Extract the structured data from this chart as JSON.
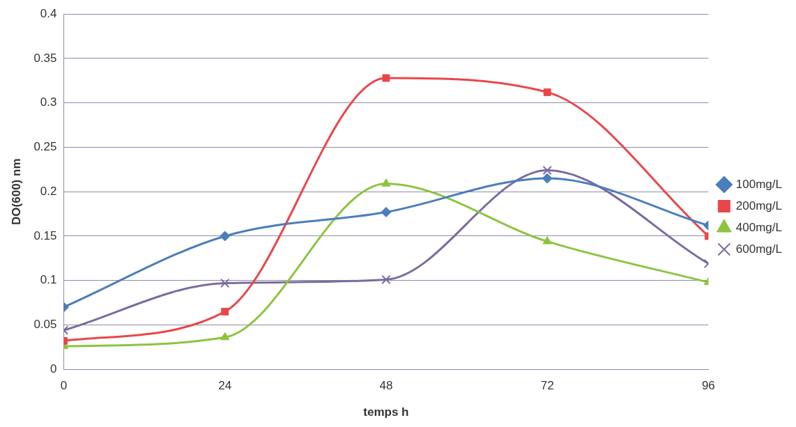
{
  "chart_data": {
    "type": "line",
    "xlabel": "temps h",
    "ylabel": "DO(600) nm",
    "x": [
      0,
      24,
      48,
      72,
      96
    ],
    "xlim": [
      0,
      96
    ],
    "xticks": [
      0,
      24,
      48,
      72,
      96
    ],
    "ylim": [
      0,
      0.4
    ],
    "yticks": [
      0,
      0.05,
      0.1,
      0.15,
      0.2,
      0.25,
      0.3,
      0.35,
      0.4
    ],
    "grid": "y",
    "legend": "right",
    "series": [
      {
        "name": "100mg/L",
        "color": "#4a7ebb",
        "marker": "diamond",
        "values": [
          0.07,
          0.15,
          0.177,
          0.215,
          0.162
        ]
      },
      {
        "name": "200mg/L",
        "color": "#e8474a",
        "marker": "square",
        "values": [
          0.032,
          0.065,
          0.328,
          0.312,
          0.15
        ]
      },
      {
        "name": "400mg/L",
        "color": "#8cc43f",
        "marker": "triangle",
        "values": [
          0.026,
          0.036,
          0.209,
          0.144,
          0.098
        ]
      },
      {
        "name": "600mg/L",
        "color": "#7b6aa0",
        "marker": "cross",
        "values": [
          0.044,
          0.097,
          0.101,
          0.224,
          0.119
        ]
      }
    ]
  }
}
